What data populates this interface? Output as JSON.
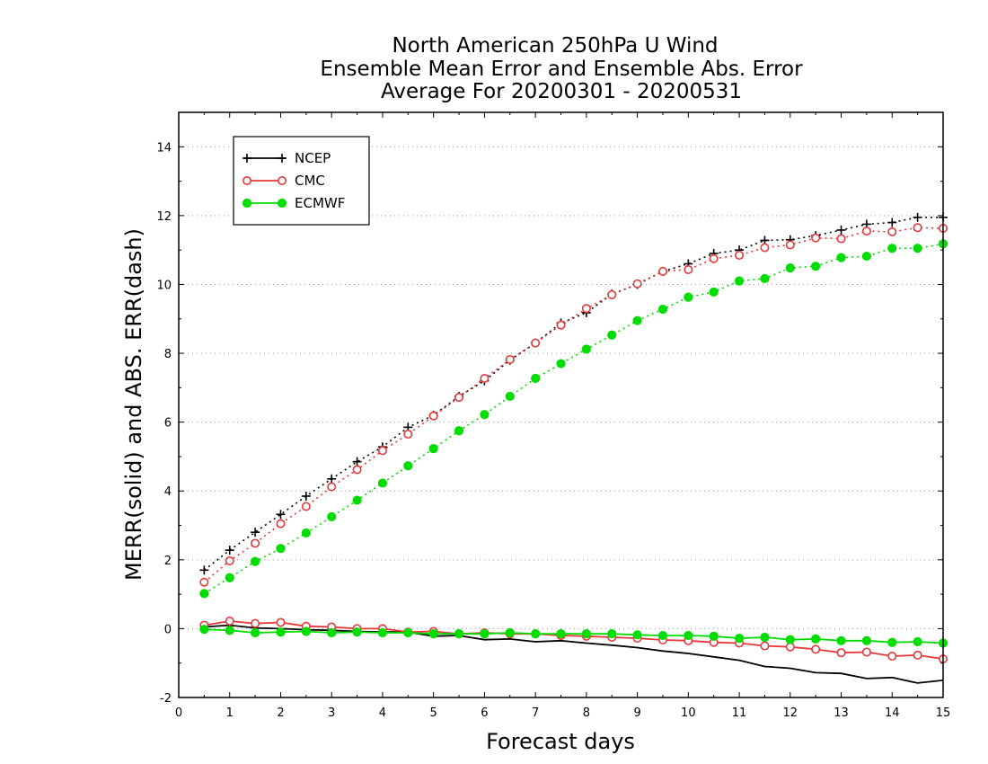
{
  "chart_data": {
    "type": "line",
    "title_lines": [
      "North American 250hPa U Wind",
      "Ensemble Mean Error and Ensemble Abs. Error",
      "Average For 20200301 - 20200531"
    ],
    "xlabel": "Forecast days",
    "ylabel": "MERR(solid) and ABS. ERR(dash)",
    "xlim": [
      0,
      15
    ],
    "ylim": [
      -2,
      15
    ],
    "x_ticks": [
      "0",
      "1",
      "2",
      "3",
      "4",
      "5",
      "6",
      "7",
      "8",
      "9",
      "10",
      "11",
      "12",
      "13",
      "14",
      "15"
    ],
    "y_ticks": [
      "14",
      "12",
      "10",
      "8",
      "6",
      "4",
      "2",
      "0",
      "-2"
    ],
    "grid": "horizontal dotted",
    "legend_position": "top-left",
    "x": [
      0.5,
      1,
      1.5,
      2,
      2.5,
      3,
      3.5,
      4,
      4.5,
      5,
      5.5,
      6,
      6.5,
      7,
      7.5,
      8,
      8.5,
      9,
      9.5,
      10,
      10.5,
      11,
      11.5,
      12,
      12.5,
      13,
      13.5,
      14,
      14.5,
      15
    ],
    "series": [
      {
        "name": "NCEP",
        "color": "#000000",
        "marker": "plus",
        "abs_err": [
          1.7,
          2.28,
          2.8,
          3.32,
          3.85,
          4.35,
          4.85,
          5.28,
          5.85,
          6.2,
          6.75,
          7.2,
          7.8,
          8.3,
          8.88,
          9.18,
          9.72,
          10.0,
          10.38,
          10.6,
          10.9,
          11.0,
          11.28,
          11.3,
          11.42,
          11.58,
          11.75,
          11.8,
          11.95,
          11.95
        ],
        "mean_err": [
          0.05,
          0.1,
          0.02,
          0.0,
          -0.03,
          -0.05,
          -0.08,
          -0.1,
          -0.1,
          -0.22,
          -0.2,
          -0.32,
          -0.3,
          -0.38,
          -0.35,
          -0.42,
          -0.48,
          -0.55,
          -0.65,
          -0.72,
          -0.82,
          -0.92,
          -1.1,
          -1.15,
          -1.28,
          -1.3,
          -1.45,
          -1.42,
          -1.58,
          -1.5
        ]
      },
      {
        "name": "CMC",
        "color": "#e8373a",
        "marker": "open-circle",
        "abs_err": [
          1.35,
          1.97,
          2.48,
          3.05,
          3.55,
          4.12,
          4.62,
          5.17,
          5.65,
          6.18,
          6.72,
          7.27,
          7.82,
          8.3,
          8.82,
          9.3,
          9.7,
          10.02,
          10.38,
          10.43,
          10.75,
          10.85,
          11.07,
          11.15,
          11.35,
          11.33,
          11.55,
          11.53,
          11.65,
          11.63
        ],
        "mean_err": [
          0.1,
          0.22,
          0.15,
          0.18,
          0.07,
          0.05,
          0.0,
          0.0,
          -0.1,
          -0.08,
          -0.15,
          -0.12,
          -0.15,
          -0.15,
          -0.2,
          -0.22,
          -0.25,
          -0.28,
          -0.33,
          -0.35,
          -0.4,
          -0.42,
          -0.5,
          -0.53,
          -0.6,
          -0.7,
          -0.68,
          -0.8,
          -0.77,
          -0.88
        ]
      },
      {
        "name": "ECMWF",
        "color": "#00dd00",
        "marker": "filled-circle",
        "abs_err": [
          1.02,
          1.48,
          1.95,
          2.33,
          2.78,
          3.25,
          3.73,
          4.23,
          4.73,
          5.23,
          5.75,
          6.22,
          6.75,
          7.27,
          7.7,
          8.12,
          8.53,
          8.95,
          9.28,
          9.63,
          9.78,
          10.1,
          10.17,
          10.48,
          10.53,
          10.78,
          10.82,
          11.05,
          11.05,
          11.18
        ],
        "mean_err": [
          -0.02,
          -0.05,
          -0.12,
          -0.1,
          -0.08,
          -0.12,
          -0.1,
          -0.12,
          -0.12,
          -0.15,
          -0.15,
          -0.15,
          -0.12,
          -0.15,
          -0.15,
          -0.15,
          -0.15,
          -0.18,
          -0.2,
          -0.2,
          -0.22,
          -0.28,
          -0.25,
          -0.32,
          -0.3,
          -0.35,
          -0.35,
          -0.4,
          -0.38,
          -0.42
        ]
      }
    ]
  }
}
